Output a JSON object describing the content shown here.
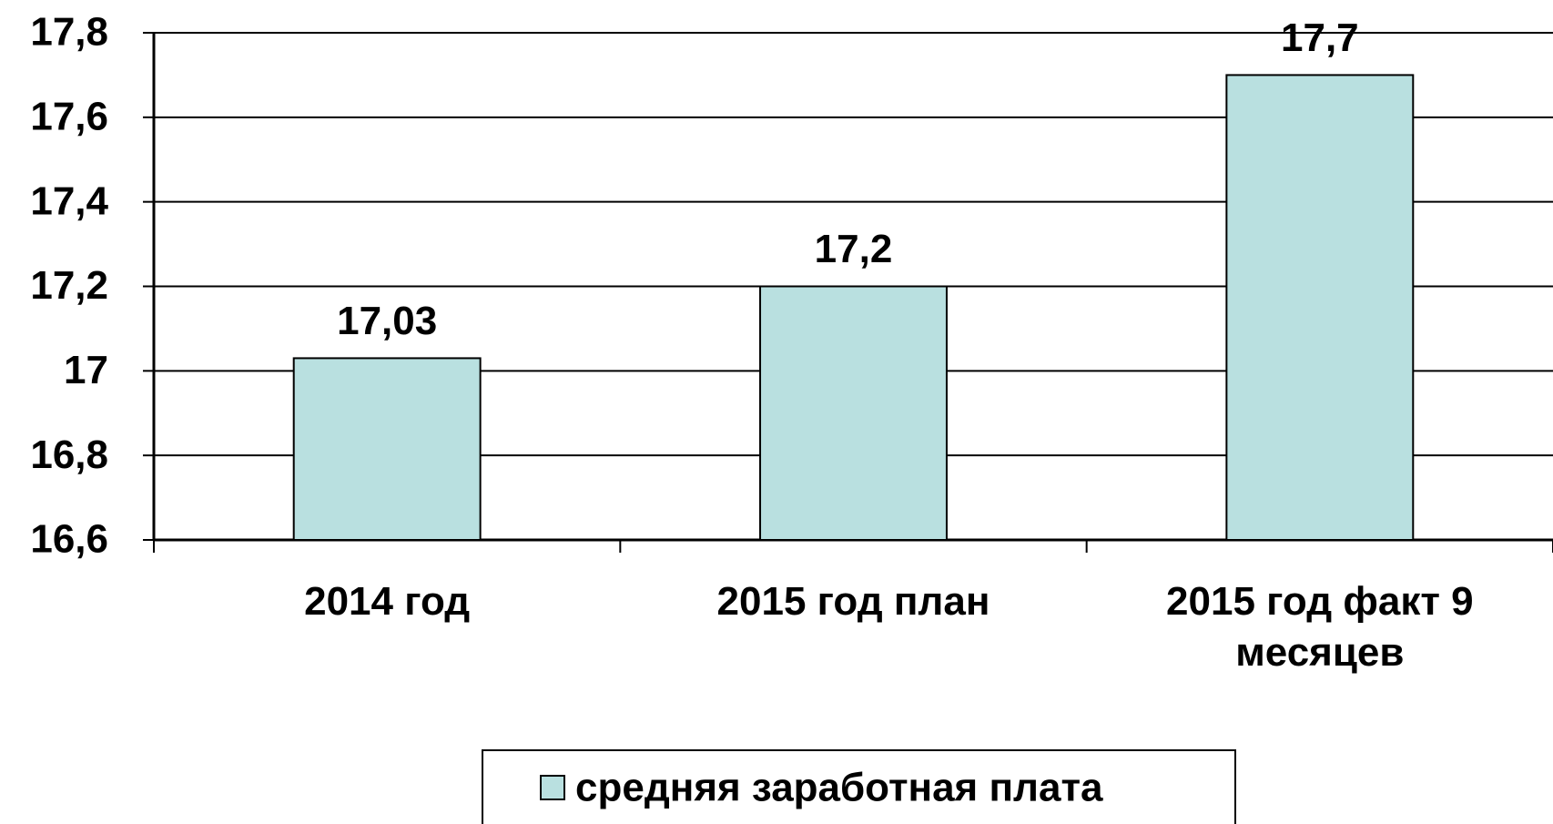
{
  "chart_data": {
    "type": "bar",
    "categories": [
      "2014 год",
      "2015 год план",
      "2015 год факт 9 месяцев"
    ],
    "series": [
      {
        "name": "средняя заработная плата",
        "color": "#b9e0e0",
        "values": [
          17.03,
          17.2,
          17.7
        ],
        "value_labels": [
          "17,03",
          "17,2",
          "17,7"
        ]
      }
    ],
    "ylim": [
      16.6,
      17.8
    ],
    "yticks": [
      {
        "value": 16.6,
        "label": "16,6"
      },
      {
        "value": 16.8,
        "label": "16,8"
      },
      17,
      {
        "value": 17.2,
        "label": "17,2"
      },
      {
        "value": 17.4,
        "label": "17,4"
      },
      {
        "value": 17.6,
        "label": "17,6"
      },
      {
        "value": 17.8,
        "label": "17,8"
      }
    ],
    "grid": true,
    "legend": "bottom"
  }
}
